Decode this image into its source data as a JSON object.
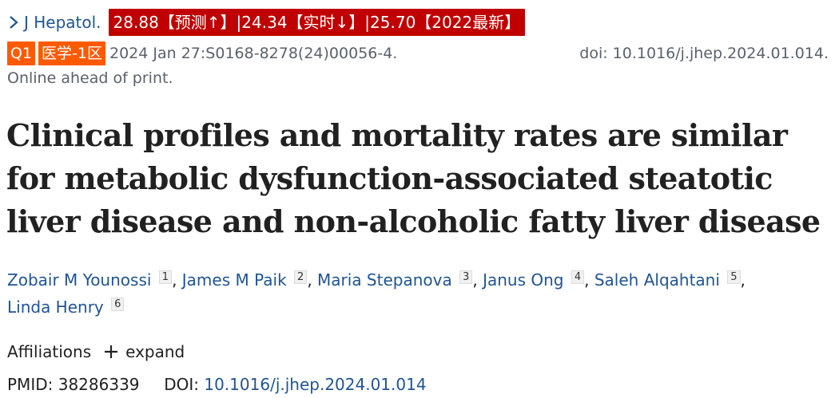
{
  "header": {
    "journal": "J Hepatol.",
    "metrics": [
      "28.88【预测↑】|24.34【实时↓】|25.70【2022最新】"
    ],
    "badges": [
      "Q1",
      "医学-1区"
    ],
    "citation": "2024 Jan 27:S0168-8278(24)00056-4.",
    "doi_right": "doi: 10.1016/j.jhep.2024.01.014.",
    "status": "Online ahead of print."
  },
  "article": {
    "title": "Clinical profiles and mortality rates are similar for metabolic dysfunction-associated steatotic liver disease and non-alcoholic fatty liver disease"
  },
  "authors": [
    {
      "name": "Zobair M Younossi",
      "aff": "1"
    },
    {
      "name": "James M Paik",
      "aff": "2"
    },
    {
      "name": "Maria Stepanova",
      "aff": "3"
    },
    {
      "name": "Janus Ong",
      "aff": "4"
    },
    {
      "name": "Saleh Alqahtani",
      "aff": "5"
    },
    {
      "name": "Linda Henry",
      "aff": "6"
    }
  ],
  "affiliations": {
    "label": "Affiliations",
    "expand_label": "expand"
  },
  "identifiers": {
    "pmid_label": "PMID:",
    "pmid": "38286339",
    "doi_label": "DOI:",
    "doi": "10.1016/j.jhep.2024.01.014"
  },
  "colors": {
    "link": "#205493",
    "metric_bg": "#c00000",
    "badge_bg": "#ff5a00",
    "muted": "#5b616b"
  },
  "icons": {
    "journal": "chevron-right-icon",
    "expand": "plus-icon"
  }
}
